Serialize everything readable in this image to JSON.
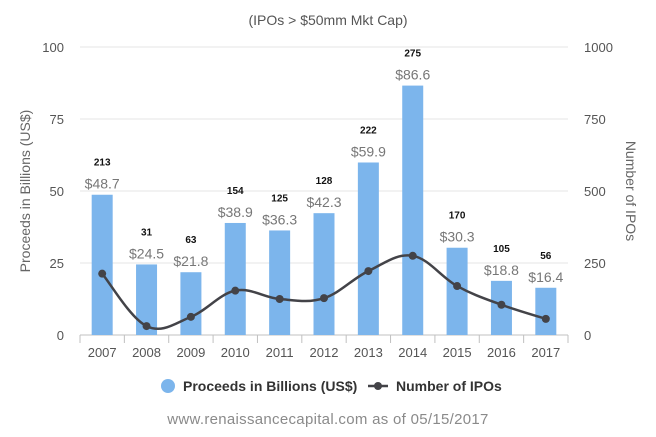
{
  "chart_data": {
    "type": "bar",
    "subtitle": "(IPOs > $50mm Mkt Cap)",
    "categories": [
      "2007",
      "2008",
      "2009",
      "2010",
      "2011",
      "2012",
      "2013",
      "2014",
      "2015",
      "2016",
      "2017"
    ],
    "series": [
      {
        "name": "Proceeds in Billions (US$)",
        "type": "bar",
        "axis": "left",
        "color": "#7cb5ec",
        "values": [
          48.7,
          24.5,
          21.8,
          38.9,
          36.3,
          42.3,
          59.9,
          86.6,
          30.3,
          18.8,
          16.4
        ],
        "labels": [
          "$48.7",
          "$24.5",
          "$21.8",
          "$38.9",
          "$36.3",
          "$42.3",
          "$59.9",
          "$86.6",
          "$30.3",
          "$18.8",
          "$16.4"
        ]
      },
      {
        "name": "Number of IPOs",
        "type": "line",
        "axis": "right",
        "color": "#434348",
        "values": [
          213,
          31,
          63,
          154,
          125,
          128,
          222,
          275,
          170,
          105,
          56
        ]
      }
    ],
    "y_left": {
      "label": "Proceeds in Billions (US$)",
      "ylim": [
        0,
        100
      ],
      "ticks": [
        "0",
        "25",
        "50",
        "75",
        "100"
      ]
    },
    "y_right": {
      "label": "Number of IPOs",
      "ylim": [
        0,
        1000
      ],
      "ticks": [
        "0",
        "250",
        "500",
        "750",
        "1000"
      ]
    },
    "grid": true,
    "legend": "bottom-center"
  },
  "footer": "www.renaissancecapital.com as of 05/15/2017"
}
